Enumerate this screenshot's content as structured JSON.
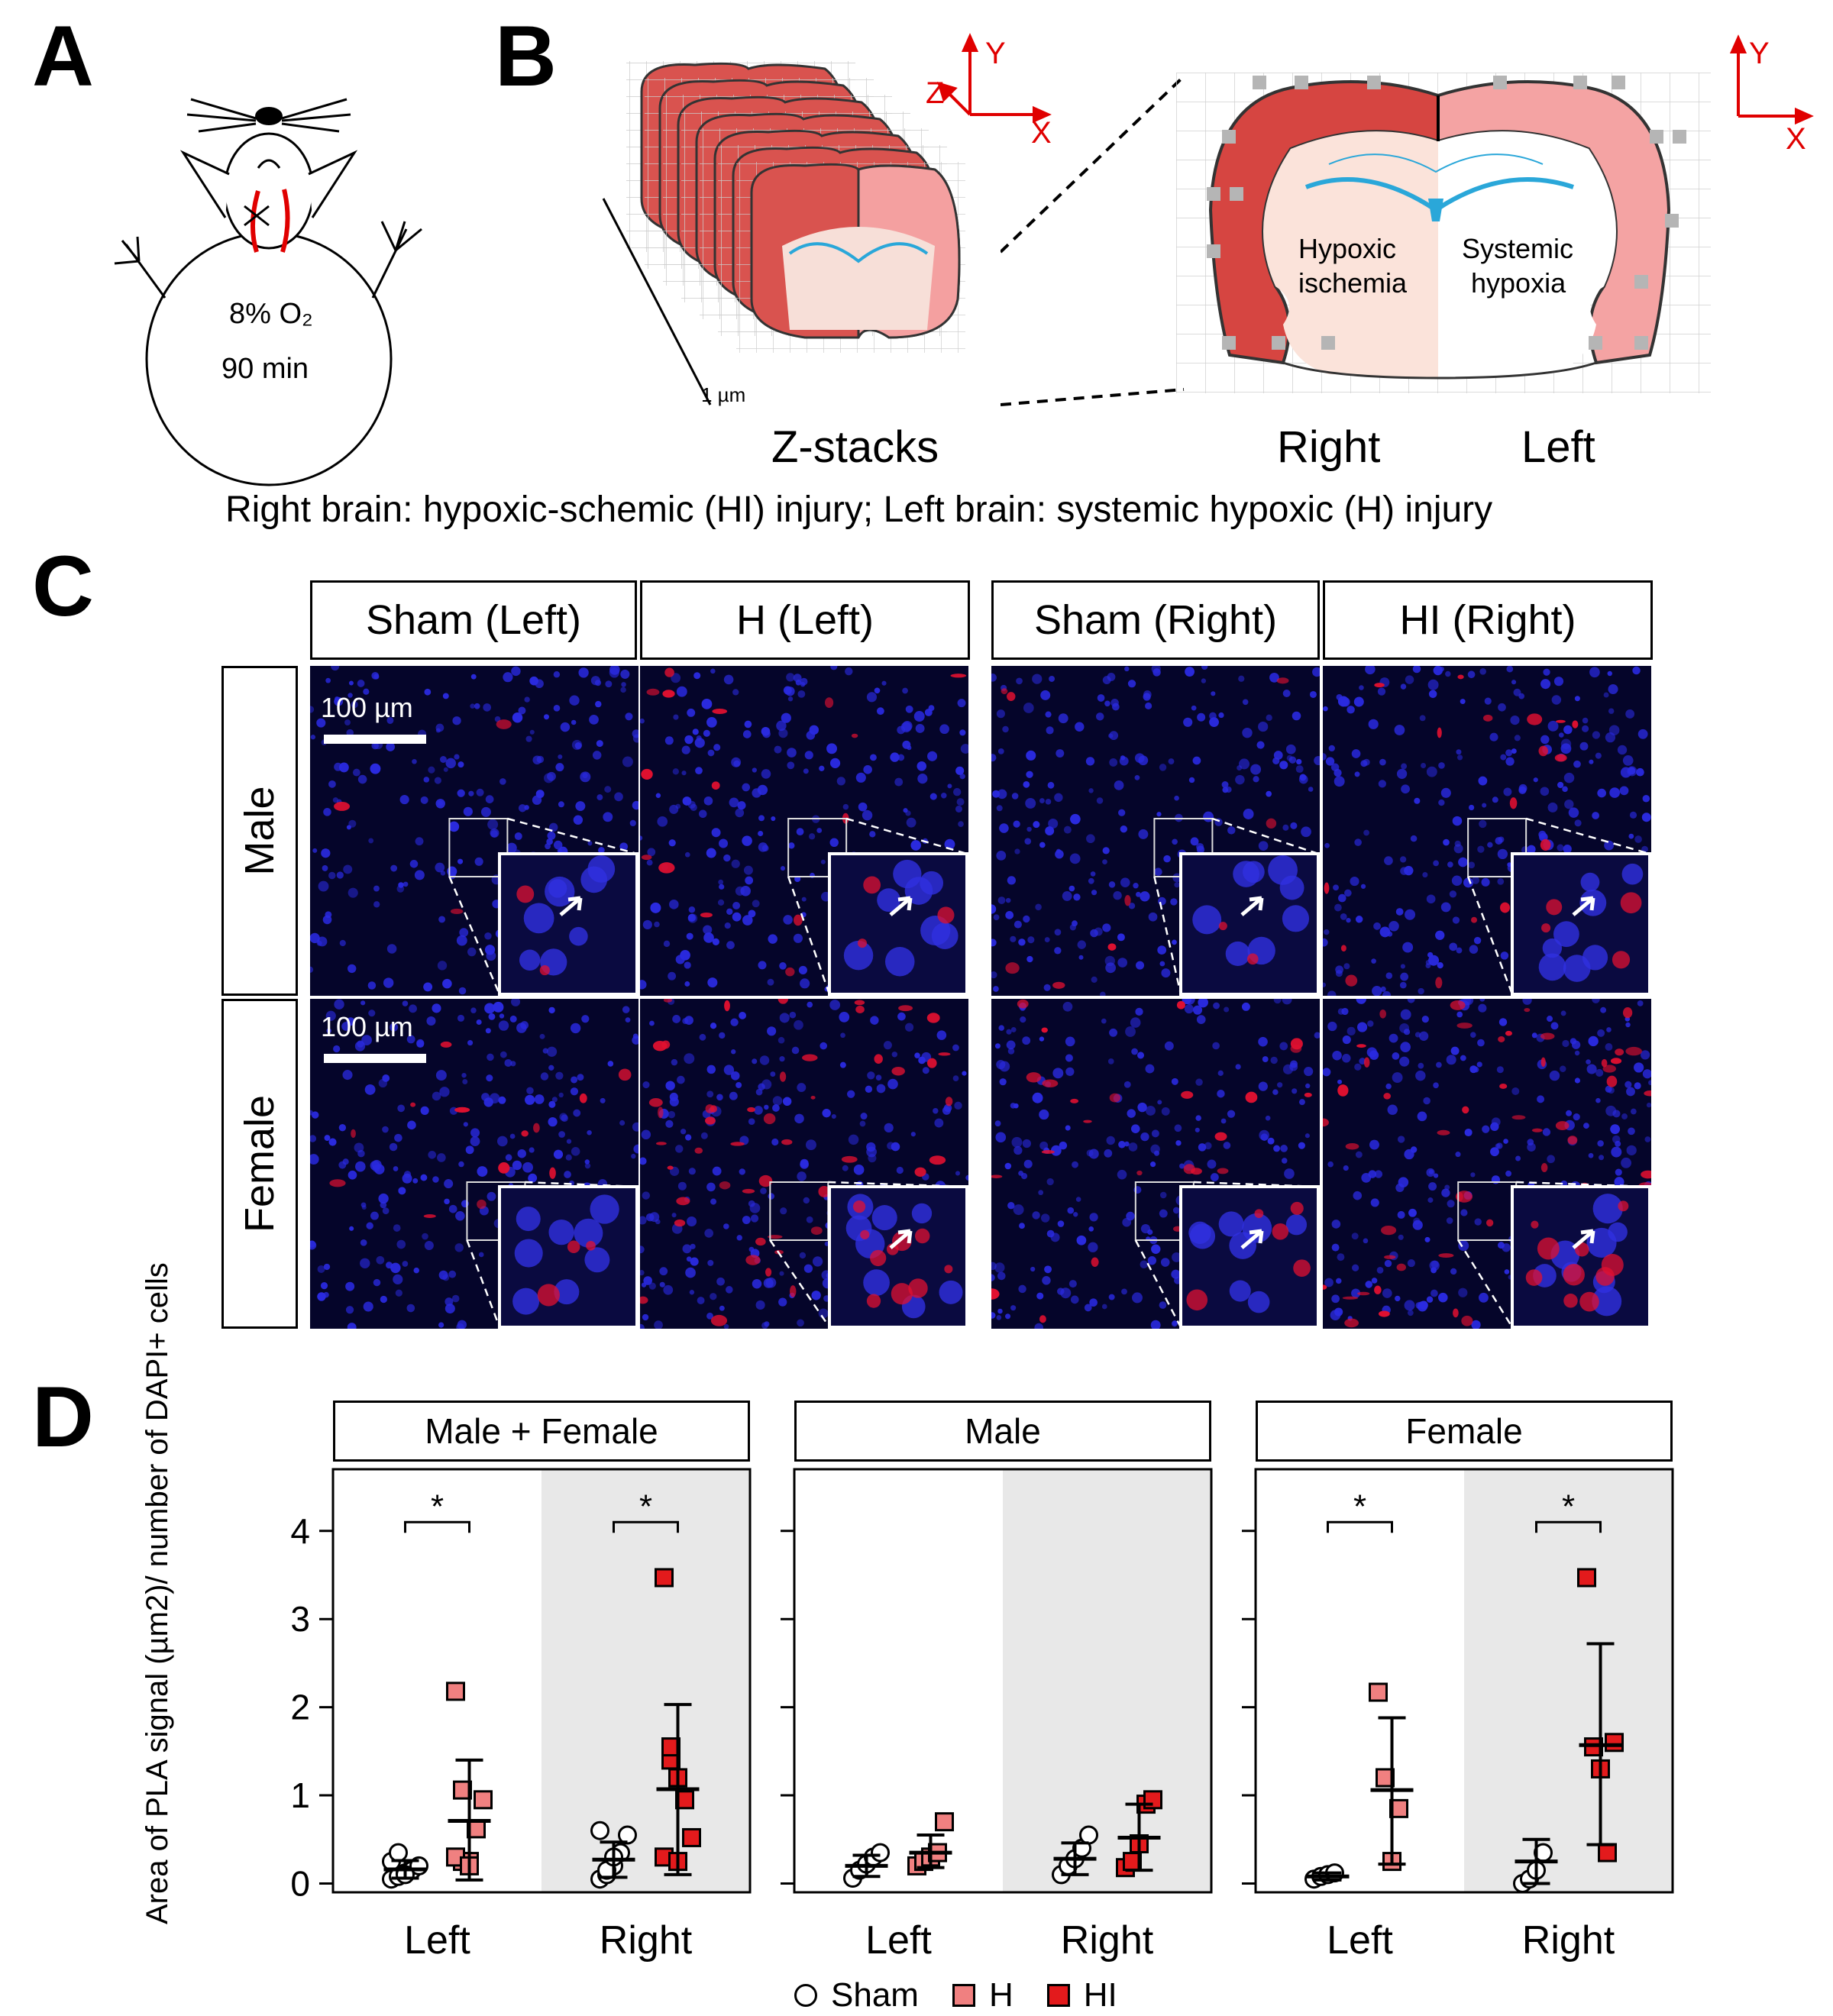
{
  "panel_letters": {
    "a": "A",
    "b": "B",
    "c": "C",
    "d": "D"
  },
  "panel_a": {
    "line1": "8% O₂",
    "line2": "90 min"
  },
  "panel_b": {
    "axes_small": {
      "z": "Z",
      "y": "Y",
      "x": "X"
    },
    "axes_right": {
      "y": "Y",
      "x": "X"
    },
    "scale": "1 µm",
    "zstacks": "Z-stacks",
    "hypoxic": "Hypoxic",
    "ischemia": "ischemia",
    "systemic": "Systemic",
    "hypoxia": "hypoxia",
    "right": "Right",
    "left": "Left",
    "caption": "Right brain: hypoxic-schemic (HI) injury; Left brain: systemic hypoxic (H) injury"
  },
  "panel_c": {
    "columns": [
      "Sham (Left)",
      "H (Left)",
      "Sham (Right)",
      "HI (Right)"
    ],
    "rows": [
      "Male",
      "Female"
    ],
    "scalebar": "100 µm"
  },
  "colors": {
    "sham": "#ffffff",
    "H": "#f08080",
    "HI": "#e31a1c",
    "shade": "#e8e8e8",
    "axis_red": "#e00000"
  },
  "chart_data": [
    {
      "type": "scatter",
      "title": "Male + Female",
      "ylabel": "Area of PLA signal (µm2)/ number of DAPI+ cells",
      "ylim": [
        -0.1,
        4.7
      ],
      "yticks": [
        "0",
        "1",
        "2",
        "3",
        "4"
      ],
      "categories": [
        "Left",
        "Right"
      ],
      "shaded": "Right",
      "groups": [
        {
          "category": "Left",
          "series": "Sham",
          "mean": 0.16,
          "sd_low": 0.06,
          "sd_high": 0.26,
          "points": [
            0.05,
            0.08,
            0.12,
            0.15,
            0.2,
            0.25,
            0.35,
            0.1
          ]
        },
        {
          "category": "Left",
          "series": "H",
          "mean": 0.71,
          "sd_low": 0.04,
          "sd_high": 1.4,
          "points": [
            2.18,
            0.25,
            0.25,
            0.62,
            0.95,
            0.3,
            1.06,
            0.2
          ]
        },
        {
          "category": "Right",
          "series": "Sham",
          "mean": 0.27,
          "sd_low": 0.07,
          "sd_high": 0.47,
          "points": [
            0.05,
            0.1,
            0.2,
            0.35,
            0.55,
            0.6,
            0.15,
            0.3
          ]
        },
        {
          "category": "Right",
          "series": "HI",
          "mean": 1.07,
          "sd_low": 0.1,
          "sd_high": 2.03,
          "points": [
            3.47,
            1.4,
            1.2,
            0.95,
            0.52,
            0.3,
            1.55,
            0.25
          ]
        }
      ],
      "significance": [
        {
          "category": "Left",
          "label": "*"
        },
        {
          "category": "Right",
          "label": "*"
        }
      ]
    },
    {
      "type": "scatter",
      "title": "Male",
      "ylim": [
        -0.1,
        4.7
      ],
      "categories": [
        "Left",
        "Right"
      ],
      "shaded": "Right",
      "groups": [
        {
          "category": "Left",
          "series": "Sham",
          "mean": 0.2,
          "sd_low": 0.08,
          "sd_high": 0.32,
          "points": [
            0.06,
            0.15,
            0.22,
            0.3,
            0.35
          ]
        },
        {
          "category": "Left",
          "series": "H",
          "mean": 0.35,
          "sd_low": 0.18,
          "sd_high": 0.55,
          "points": [
            0.2,
            0.25,
            0.3,
            0.35,
            0.7
          ]
        },
        {
          "category": "Right",
          "series": "Sham",
          "mean": 0.28,
          "sd_low": 0.1,
          "sd_high": 0.46,
          "points": [
            0.1,
            0.2,
            0.28,
            0.4,
            0.55
          ]
        },
        {
          "category": "Right",
          "series": "HI",
          "mean": 0.52,
          "sd_low": 0.15,
          "sd_high": 0.9,
          "points": [
            0.18,
            0.25,
            0.45,
            0.9,
            0.95
          ]
        }
      ]
    },
    {
      "type": "scatter",
      "title": "Female",
      "ylim": [
        -0.1,
        4.7
      ],
      "categories": [
        "Left",
        "Right"
      ],
      "shaded": "Right",
      "groups": [
        {
          "category": "Left",
          "series": "Sham",
          "mean": 0.08,
          "sd_low": 0.04,
          "sd_high": 0.12,
          "points": [
            0.05,
            0.08,
            0.1,
            0.12
          ]
        },
        {
          "category": "Left",
          "series": "H",
          "mean": 1.06,
          "sd_low": 0.22,
          "sd_high": 1.88,
          "points": [
            2.17,
            1.2,
            0.25,
            0.85
          ]
        },
        {
          "category": "Right",
          "series": "Sham",
          "mean": 0.25,
          "sd_low": 0.0,
          "sd_high": 0.5,
          "points": [
            0.0,
            0.05,
            0.15,
            0.35
          ]
        },
        {
          "category": "Right",
          "series": "HI",
          "mean": 1.57,
          "sd_low": 0.44,
          "sd_high": 2.72,
          "points": [
            3.47,
            1.55,
            1.3,
            0.35,
            1.6
          ]
        }
      ],
      "significance": [
        {
          "category": "Left",
          "label": "*"
        },
        {
          "category": "Right",
          "label": "*"
        }
      ]
    }
  ],
  "legend": [
    {
      "series": "Sham",
      "label": "Sham"
    },
    {
      "series": "H",
      "label": "H"
    },
    {
      "series": "HI",
      "label": "HI"
    }
  ]
}
